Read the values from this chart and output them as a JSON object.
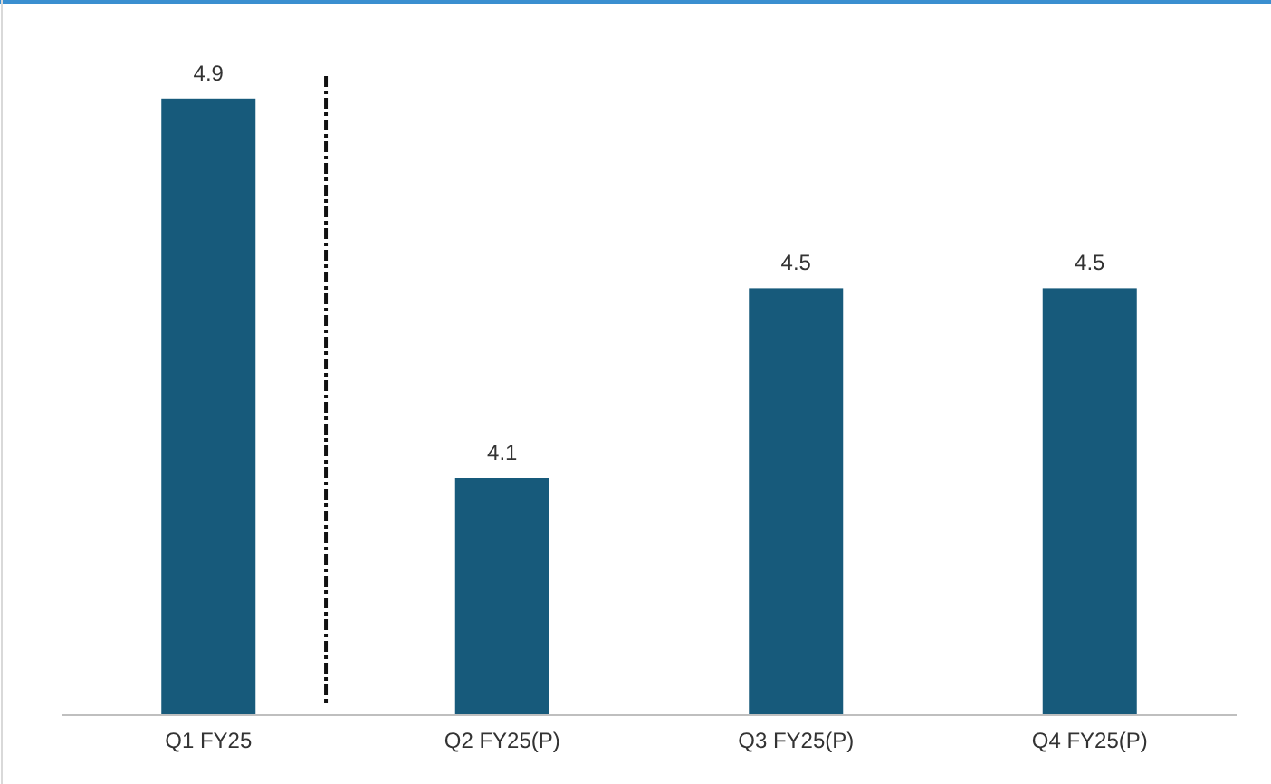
{
  "chart_data": {
    "type": "bar",
    "categories": [
      "Q1 FY25",
      "Q2 FY25(P)",
      "Q3 FY25(P)",
      "Q4 FY25(P)"
    ],
    "values": [
      4.9,
      4.1,
      4.5,
      4.5
    ],
    "color": "#175a7b",
    "ylim": [
      3.6,
      5.1
    ],
    "data_labels": true
  }
}
